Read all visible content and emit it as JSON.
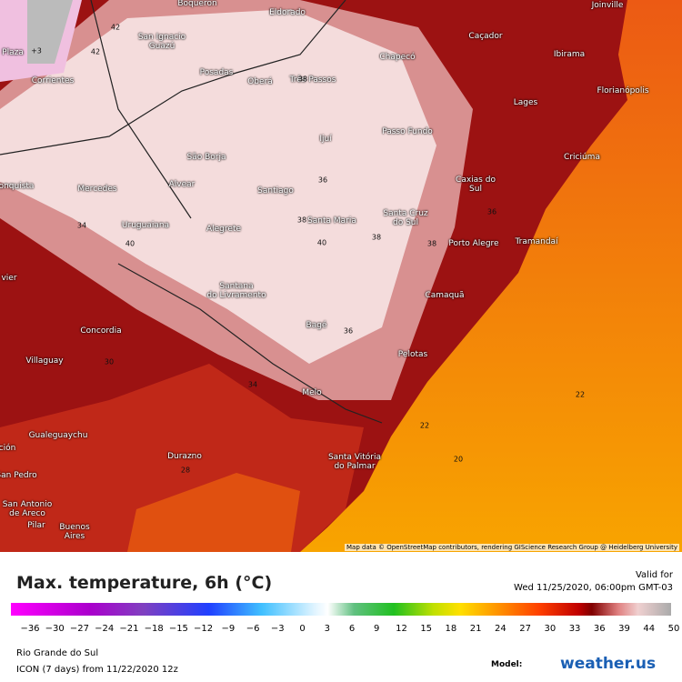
{
  "header": {
    "title": "Max. temperature, 6h (°C)",
    "valid_label": "Valid for",
    "valid_time": "Wed 11/25/2020, 06:00pm GMT-03"
  },
  "map": {
    "places": [
      "Boqueron",
      "Joinville",
      "Eldorado",
      "San Ignacio\nGuazú",
      "Caçador",
      "Chapecó",
      "Ibirama",
      "Plaza",
      "Corrientes",
      "Posadas",
      "Oberá",
      "Três Passos",
      "Florianópolis",
      "Lages",
      "Passo Fundo",
      "Ijuí",
      "Criciúma",
      "São Borja",
      "Caxias do\nSul",
      "Alvear",
      "Mercedes",
      "Santiago",
      "onquista",
      "Uruguaiana",
      "Alegrete",
      "Santa Maria",
      "Santa Cruz\ndo Sul",
      "Porto Alegre",
      "Tramandaí",
      "vier",
      "Santana\ndo Livramento",
      "Camaquã",
      "Concordia",
      "Bagé",
      "Villaguay",
      "Pelotas",
      "Melo",
      "Gualeguaychu",
      "Durazno",
      "Santa Vitória\ndo Palmar",
      "San Pedro",
      "San Antonio\nde Areco",
      "Pilar",
      "Buenos\nAires",
      "ción"
    ],
    "contours": [
      "42",
      "42",
      "38",
      "36",
      "34",
      "40",
      "38",
      "40",
      "38",
      "38",
      "36",
      "36",
      "34",
      "22",
      "22",
      "20",
      "30",
      "28",
      "+3"
    ],
    "attribution": "Map data © OpenStreetMap contributors, rendering GIScience Research Group @ Heidelberg University"
  },
  "legend": {
    "ticks": [
      "−36",
      "−30",
      "−27",
      "−24",
      "−21",
      "−18",
      "−15",
      "−12",
      "−9",
      "−6",
      "−3",
      "0",
      "3",
      "6",
      "9",
      "12",
      "15",
      "18",
      "21",
      "24",
      "27",
      "30",
      "33",
      "36",
      "39",
      "44",
      "50"
    ]
  },
  "footer": {
    "region": "Rio Grande do Sul",
    "model_run": "ICON (7 days)  from  11/22/2020 12z",
    "model_label": "Model:",
    "brand": "weather.us"
  }
}
